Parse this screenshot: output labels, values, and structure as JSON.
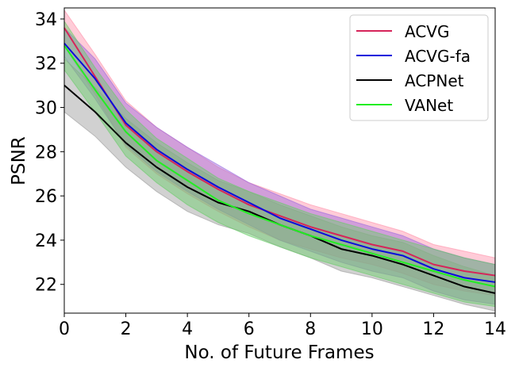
{
  "chart_data": {
    "type": "line",
    "title": "",
    "xlabel": "No. of Future Frames",
    "ylabel": "PSNR",
    "xlim": [
      0,
      14
    ],
    "ylim": [
      20.7,
      34.5
    ],
    "xticks": [
      0,
      2,
      4,
      6,
      8,
      10,
      12,
      14
    ],
    "yticks": [
      22,
      24,
      26,
      28,
      30,
      32,
      34
    ],
    "legend_position": "top-right",
    "x": [
      0,
      1,
      2,
      3,
      4,
      5,
      6,
      7,
      8,
      9,
      10,
      11,
      12,
      13,
      14
    ],
    "series": [
      {
        "name": "ACVG",
        "color": "#d6245a",
        "band_color": "#ff8fa8",
        "values": [
          33.6,
          31.4,
          29.2,
          28.0,
          27.1,
          26.3,
          25.6,
          25.1,
          24.6,
          24.2,
          23.8,
          23.5,
          22.9,
          22.6,
          22.4
        ],
        "lower": [
          32.8,
          30.6,
          28.2,
          27.0,
          26.1,
          25.3,
          24.6,
          24.0,
          23.6,
          23.2,
          22.9,
          22.5,
          22.0,
          21.7,
          21.5
        ],
        "upper": [
          34.4,
          32.4,
          30.3,
          29.1,
          28.2,
          27.3,
          26.6,
          26.1,
          25.6,
          25.2,
          24.8,
          24.4,
          23.8,
          23.5,
          23.2
        ]
      },
      {
        "name": "ACVG-fa",
        "color": "#0a0adc",
        "band_color": "#9966dd",
        "values": [
          32.9,
          31.3,
          29.3,
          28.1,
          27.2,
          26.4,
          25.7,
          25.0,
          24.5,
          24.0,
          23.6,
          23.3,
          22.7,
          22.3,
          22.1
        ],
        "lower": [
          32.3,
          30.4,
          28.3,
          27.1,
          26.2,
          25.4,
          24.7,
          24.0,
          23.5,
          23.0,
          22.6,
          22.3,
          21.7,
          21.3,
          21.1
        ],
        "upper": [
          33.6,
          32.2,
          30.2,
          29.1,
          28.2,
          27.4,
          26.6,
          26.0,
          25.4,
          25.0,
          24.6,
          24.2,
          23.6,
          23.2,
          22.9
        ]
      },
      {
        "name": "ACPNet",
        "color": "#000000",
        "band_color": "#999999",
        "values": [
          31.0,
          29.8,
          28.4,
          27.3,
          26.4,
          25.7,
          25.3,
          24.7,
          24.2,
          23.6,
          23.3,
          22.9,
          22.4,
          21.9,
          21.6
        ],
        "lower": [
          29.8,
          28.7,
          27.3,
          26.2,
          25.3,
          24.7,
          24.3,
          23.7,
          23.2,
          22.6,
          22.3,
          21.9,
          21.5,
          21.1,
          20.8
        ],
        "upper": [
          32.2,
          30.9,
          29.5,
          28.4,
          27.5,
          26.7,
          26.2,
          25.6,
          25.1,
          24.6,
          24.2,
          23.9,
          23.3,
          22.8,
          22.4
        ]
      },
      {
        "name": "VANet",
        "color": "#22ee22",
        "band_color": "#66cc66",
        "values": [
          32.8,
          30.8,
          28.9,
          27.6,
          26.7,
          25.8,
          25.2,
          24.7,
          24.2,
          23.8,
          23.4,
          23.0,
          22.6,
          22.2,
          21.9
        ],
        "lower": [
          31.7,
          29.8,
          27.8,
          26.6,
          25.6,
          24.8,
          24.2,
          23.7,
          23.2,
          22.8,
          22.4,
          22.0,
          21.6,
          21.2,
          21.0
        ],
        "upper": [
          33.9,
          31.8,
          29.9,
          28.6,
          27.7,
          26.8,
          26.2,
          25.7,
          25.2,
          24.8,
          24.4,
          24.0,
          23.6,
          23.2,
          22.9
        ]
      }
    ]
  }
}
